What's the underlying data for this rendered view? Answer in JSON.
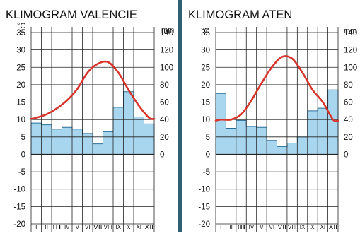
{
  "colors": {
    "background_left": "#ffffff",
    "background_right": "#ffffff",
    "divider": "#2e5f72",
    "temperature_line": "#d9342b",
    "precipitation_fill": "#a9d6ef",
    "precipitation_stroke": "#2a6f96",
    "grid": "#222222"
  },
  "chart_data": [
    {
      "type": "bar",
      "title": "KLIMOGRAM VALENCIE",
      "left_unit": "°C",
      "right_unit": "mm",
      "categories": [
        "I",
        "II",
        "III",
        "IV",
        "V",
        "VI",
        "VII",
        "VIII",
        "IX",
        "X",
        "XI",
        "XII"
      ],
      "left_axis": {
        "ticks": [
          35,
          30,
          25,
          20,
          15,
          10,
          5,
          0,
          -5,
          -10,
          -15,
          -20
        ],
        "ylim": [
          -20,
          35
        ]
      },
      "right_axis": {
        "ticks": [
          140,
          120,
          100,
          80,
          60,
          40,
          20,
          0
        ],
        "ylim": [
          -80,
          140
        ]
      },
      "series": [
        {
          "kind": "bar",
          "axis": "right",
          "values": [
            36,
            34,
            29,
            31,
            29,
            24,
            12,
            26,
            54,
            72,
            43,
            35
          ]
        },
        {
          "kind": "line",
          "axis": "left",
          "values": [
            10.5,
            11.5,
            13.2,
            15.5,
            18.8,
            23.5,
            26,
            26.5,
            23.5,
            18.5,
            14,
            10.5
          ]
        }
      ],
      "grid": true
    },
    {
      "type": "bar",
      "title": "KLIMOGRAM ATEN",
      "left_unit": "°C",
      "right_unit": "mm",
      "categories": [
        "I",
        "II",
        "III",
        "IV",
        "V",
        "VI",
        "VII",
        "VIII",
        "IX",
        "X",
        "XI",
        "XII"
      ],
      "left_axis": {
        "ticks": [
          35,
          30,
          25,
          20,
          15,
          10,
          5,
          0,
          -5,
          -10,
          -15,
          -20
        ],
        "ylim": [
          -20,
          35
        ]
      },
      "right_axis": {
        "ticks": [
          140,
          120,
          100,
          80,
          60,
          40,
          20,
          0
        ],
        "ylim": [
          -80,
          140
        ]
      },
      "series": [
        {
          "kind": "bar",
          "axis": "right",
          "values": [
            70,
            30,
            39,
            32,
            31,
            16,
            9,
            13,
            20,
            50,
            53,
            74
          ]
        },
        {
          "kind": "line",
          "axis": "left",
          "values": [
            10,
            10,
            11.5,
            15.5,
            20.5,
            25,
            28,
            27.5,
            23.5,
            18.5,
            15,
            10
          ]
        }
      ],
      "grid": true
    }
  ]
}
